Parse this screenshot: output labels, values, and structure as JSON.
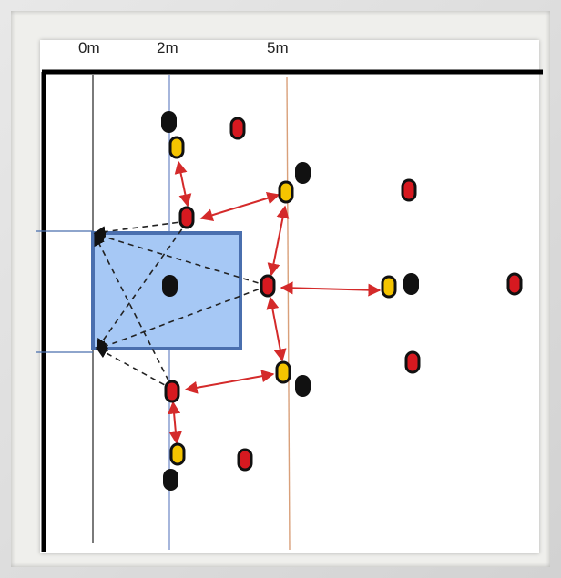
{
  "labels": {
    "zero": "0m",
    "two": "2m",
    "five": "5m"
  },
  "colors": {
    "player_red": "#d71920",
    "player_yellow": "#f5c400",
    "player_black": "#111111",
    "goal_fill": "#a6c8f5",
    "goal_border": "#4a6fae",
    "arrow_red": "#d42a2a",
    "dashed": "#222222",
    "line_2m": "#6b86c4",
    "line_5m": "#d9a07a"
  },
  "icons": {
    "player": "player-marker-icon",
    "goal": "goal-box-icon"
  }
}
